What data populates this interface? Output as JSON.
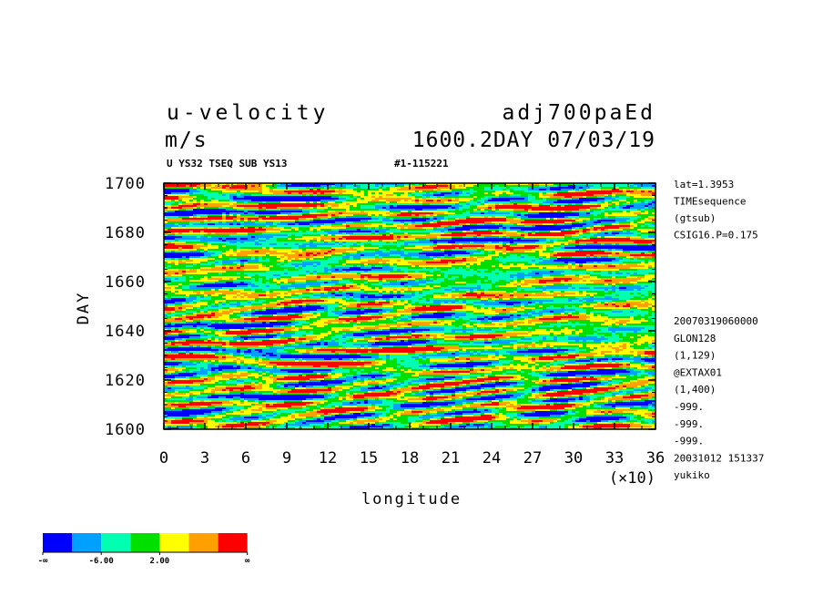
{
  "header": {
    "title_left": "u-velocity",
    "title_right": "adj700paEd",
    "units": "m/s",
    "time_info": "1600.2DAY 07/03/19",
    "subtitle": "U YS32 TSEQ SUB YS13",
    "run_id": "#1-115221"
  },
  "side_info": {
    "top": [
      "lat=1.3953",
      "TIMEsequence",
      "(gtsub)",
      "CSIG16.P=0.175"
    ],
    "bottom": [
      "20070319060000",
      "GLON128",
      "(1,129)",
      "@EXTAX01",
      "(1,400)",
      "-999.",
      "-999.",
      "-999.",
      "20031012 151337",
      "yukiko"
    ]
  },
  "legend": {
    "colors": [
      "#0000ff",
      "#00a0ff",
      "#00ffb0",
      "#00e000",
      "#ffff00",
      "#ffa000",
      "#ff0000"
    ],
    "labels": [
      "-∞",
      "-6.00",
      "2.00",
      "∞"
    ]
  },
  "chart_data": {
    "type": "heatmap",
    "xlabel": "longitude",
    "ylabel": "DAY",
    "x_multiplier": "(×10)",
    "xlim": [
      0,
      36
    ],
    "ylim": [
      1600,
      1700
    ],
    "x_ticks": [
      0,
      3,
      6,
      9,
      12,
      15,
      18,
      21,
      24,
      27,
      30,
      33,
      36
    ],
    "y_ticks": [
      1600,
      1620,
      1640,
      1660,
      1680,
      1700
    ],
    "color_levels": [
      "-∞",
      "-6.00",
      "2.00",
      "∞"
    ]
  }
}
